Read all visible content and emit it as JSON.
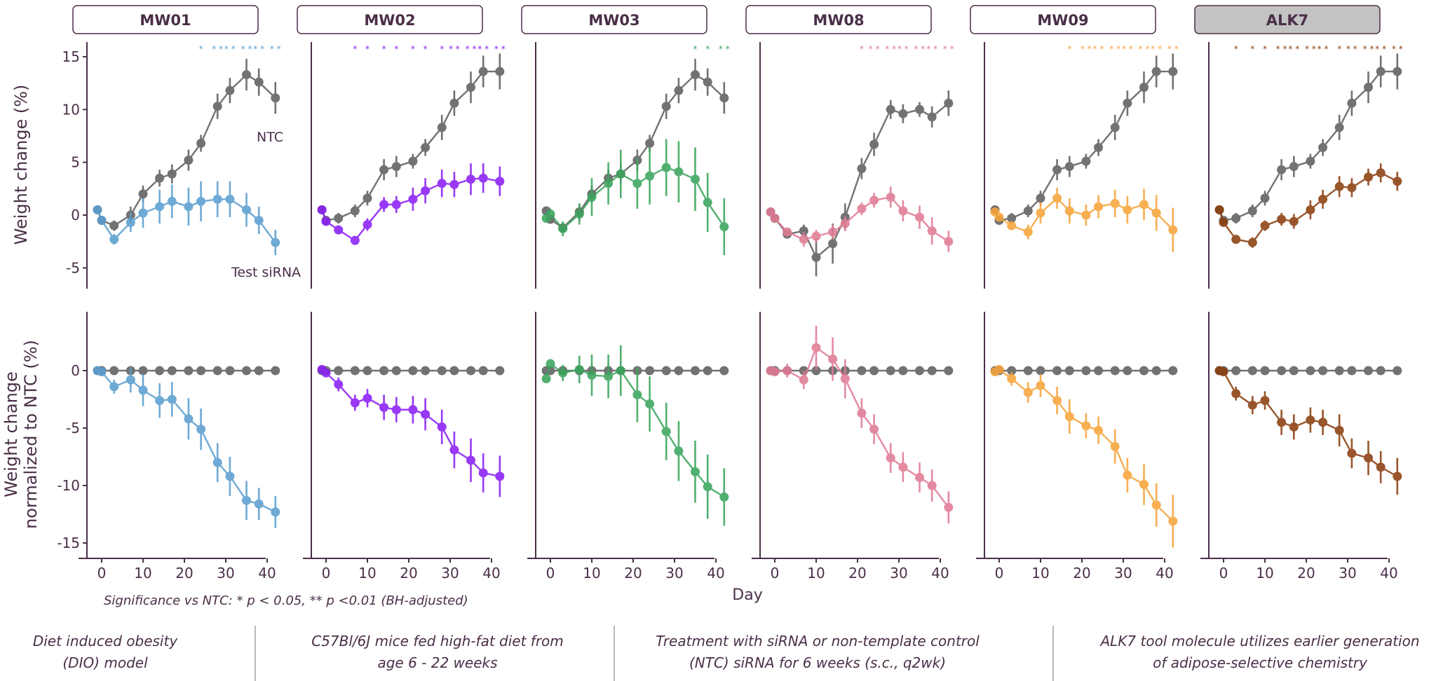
{
  "chart_data": {
    "type": "line",
    "title": "",
    "x": [
      -1,
      0,
      3,
      7,
      10,
      14,
      17,
      21,
      24,
      28,
      31,
      35,
      38,
      42
    ],
    "xlabel": "Day",
    "xticks": [
      0,
      10,
      20,
      30,
      40
    ],
    "xlim": [
      -3,
      44
    ],
    "rows": [
      {
        "id": "top",
        "ylabel": "Weight change (%)",
        "ylim": [
          -6.5,
          16.5
        ],
        "yticks": [
          15,
          10,
          5,
          0,
          -5
        ]
      },
      {
        "id": "bottom",
        "ylabel_lines": [
          "Weight change",
          "normalized to NTC (%)"
        ],
        "ylim": [
          -16.5,
          4.5
        ],
        "yticks": [
          0,
          -5,
          -10,
          -15
        ]
      }
    ],
    "annotations": {
      "ntc_label": "NTC",
      "test_label": "Test siRNA"
    },
    "significance_note": "Significance vs NTC: * p < 0.05, ** p <0.01 (BH-adjusted)",
    "ntc_color": "#5f5f5f",
    "panels": [
      {
        "name": "MW01",
        "color": "#5b9fd0",
        "highlight": false,
        "ntc": [
          0.5,
          -0.5,
          -1.0,
          0.0,
          2.0,
          3.5,
          3.9,
          5.2,
          6.8,
          10.3,
          11.8,
          13.3,
          12.6,
          11.1
        ],
        "ntc_err": [
          0.3,
          0.3,
          0.5,
          0.8,
          0.8,
          0.8,
          0.9,
          1.0,
          0.8,
          1.2,
          1.2,
          1.5,
          1.3,
          1.5
        ],
        "test": [
          0.5,
          -0.5,
          -2.3,
          -0.7,
          0.2,
          0.8,
          1.3,
          0.8,
          1.3,
          1.5,
          1.5,
          0.5,
          -0.5,
          -2.6
        ],
        "test_err": [
          0.3,
          0.4,
          0.5,
          0.9,
          1.4,
          1.6,
          1.6,
          1.8,
          1.9,
          1.7,
          1.7,
          1.6,
          1.3,
          1.2
        ],
        "norm": [
          0.0,
          -0.1,
          -1.4,
          -0.8,
          -1.7,
          -2.6,
          -2.5,
          -4.2,
          -5.1,
          -8.0,
          -9.2,
          -11.3,
          -11.6,
          -12.3
        ],
        "norm_err": [
          0.2,
          0.2,
          0.6,
          1.1,
          1.4,
          1.5,
          1.5,
          1.8,
          1.8,
          1.7,
          1.7,
          1.7,
          1.4,
          1.4
        ],
        "sig": [
          "",
          "",
          "",
          "",
          "",
          "",
          "",
          "",
          "*",
          "**",
          "**",
          "**",
          "**",
          "**"
        ]
      },
      {
        "name": "MW02",
        "color": "#8a1ef5",
        "highlight": false,
        "ntc": [
          0.5,
          -0.5,
          -0.3,
          0.4,
          1.6,
          4.3,
          4.6,
          5.1,
          6.4,
          8.3,
          10.6,
          12.1,
          13.6,
          13.6
        ],
        "ntc_err": [
          0.3,
          0.3,
          0.5,
          0.6,
          0.7,
          1.0,
          1.0,
          0.7,
          0.8,
          1.2,
          1.2,
          1.5,
          1.5,
          1.7
        ],
        "test": [
          0.5,
          -0.6,
          -1.4,
          -2.4,
          -0.9,
          1.0,
          1.0,
          1.5,
          2.3,
          3.0,
          2.9,
          3.4,
          3.5,
          3.2
        ],
        "test_err": [
          0.3,
          0.3,
          0.4,
          0.4,
          0.6,
          0.7,
          0.8,
          1.1,
          1.2,
          1.3,
          1.2,
          1.5,
          1.4,
          1.4
        ],
        "norm": [
          0.1,
          -0.2,
          -1.2,
          -2.8,
          -2.4,
          -3.2,
          -3.4,
          -3.4,
          -3.8,
          -4.9,
          -6.9,
          -7.8,
          -8.9,
          -9.2
        ],
        "norm_err": [
          0.2,
          0.2,
          0.6,
          0.7,
          0.8,
          1.1,
          1.1,
          1.2,
          1.4,
          1.5,
          1.6,
          1.9,
          1.7,
          1.8
        ],
        "sig": [
          "",
          "",
          "",
          "*",
          "*",
          "*",
          "*",
          "*",
          "*",
          "*",
          "**",
          "**",
          "**",
          "**"
        ]
      },
      {
        "name": "MW03",
        "color": "#3aa55d",
        "highlight": false,
        "ntc": [
          0.4,
          -0.4,
          -1.2,
          0.3,
          2.0,
          3.5,
          3.9,
          5.2,
          6.8,
          10.3,
          11.8,
          13.3,
          12.6,
          11.1
        ],
        "ntc_err": [
          0.3,
          0.3,
          0.4,
          0.8,
          0.8,
          0.8,
          0.9,
          1.0,
          0.8,
          1.2,
          1.2,
          1.5,
          1.3,
          1.5
        ],
        "test": [
          -0.3,
          0.1,
          -1.3,
          0.1,
          1.7,
          3.0,
          3.9,
          3.0,
          3.7,
          4.5,
          4.1,
          3.4,
          1.2,
          -1.1
        ],
        "test_err": [
          0.4,
          0.5,
          0.7,
          1.0,
          1.8,
          2.0,
          2.3,
          2.4,
          2.7,
          2.7,
          2.9,
          3.0,
          2.8,
          2.7
        ],
        "norm": [
          -0.7,
          0.6,
          -0.2,
          0.1,
          -0.4,
          -0.5,
          0.0,
          -2.1,
          -2.9,
          -5.3,
          -7.0,
          -8.8,
          -10.1,
          -11.0
        ],
        "norm_err": [
          0.3,
          0.4,
          0.7,
          1.2,
          1.8,
          1.9,
          2.2,
          2.4,
          2.4,
          2.5,
          2.6,
          2.7,
          2.8,
          2.5
        ],
        "sig": [
          "",
          "",
          "",
          "",
          "",
          "",
          "",
          "",
          "",
          "",
          "",
          "*",
          "*",
          "**"
        ]
      },
      {
        "name": "MW08",
        "color": "#e07b95",
        "highlight": false,
        "ntc": [
          0.3,
          -0.3,
          -1.8,
          -1.5,
          -4.0,
          -2.7,
          -0.2,
          4.4,
          6.7,
          10.0,
          9.6,
          10.0,
          9.3,
          10.6
        ],
        "ntc_err": [
          0.2,
          0.2,
          0.3,
          0.6,
          1.8,
          1.9,
          1.3,
          1.0,
          1.1,
          0.9,
          0.9,
          0.7,
          1.0,
          1.2
        ],
        "test": [
          0.3,
          -0.3,
          -1.6,
          -2.3,
          -2.0,
          -1.6,
          -0.8,
          0.6,
          1.4,
          1.7,
          0.4,
          -0.2,
          -1.5,
          -2.5
        ],
        "test_err": [
          0.2,
          0.2,
          0.3,
          0.7,
          0.6,
          0.7,
          0.7,
          0.6,
          0.7,
          1.0,
          1.0,
          1.1,
          1.3,
          1.0
        ],
        "norm": [
          0.0,
          -0.1,
          0.0,
          -0.8,
          2.0,
          1.0,
          -0.7,
          -3.7,
          -5.1,
          -7.6,
          -8.4,
          -9.3,
          -10.0,
          -11.9
        ],
        "norm_err": [
          0.2,
          0.2,
          0.6,
          0.8,
          1.9,
          1.9,
          1.7,
          1.3,
          1.3,
          1.3,
          1.3,
          1.3,
          1.4,
          1.4
        ],
        "sig": [
          "",
          "",
          "",
          "",
          "",
          "",
          "",
          "*",
          "**",
          "**",
          "**",
          "**",
          "**",
          "**"
        ]
      },
      {
        "name": "MW09",
        "color": "#f7a43b",
        "highlight": false,
        "ntc": [
          0.5,
          -0.5,
          -0.3,
          0.4,
          1.6,
          4.3,
          4.6,
          5.1,
          6.4,
          8.3,
          10.6,
          12.1,
          13.6,
          13.6
        ],
        "ntc_err": [
          0.3,
          0.3,
          0.5,
          0.6,
          0.7,
          1.0,
          1.0,
          0.7,
          0.8,
          1.2,
          1.2,
          1.5,
          1.5,
          1.7
        ],
        "test": [
          0.3,
          -0.2,
          -1.0,
          -1.6,
          0.2,
          1.6,
          0.4,
          0.0,
          0.8,
          1.1,
          0.5,
          1.0,
          0.2,
          -1.4
        ],
        "test_err": [
          0.2,
          0.3,
          0.4,
          0.7,
          1.0,
          1.0,
          1.2,
          1.0,
          1.1,
          1.3,
          1.3,
          1.5,
          1.7,
          2.1
        ],
        "norm": [
          -0.1,
          0.1,
          -0.7,
          -1.9,
          -1.3,
          -2.6,
          -4.0,
          -4.8,
          -5.2,
          -6.6,
          -9.1,
          -9.9,
          -11.7,
          -13.1
        ],
        "norm_err": [
          0.2,
          0.2,
          0.6,
          0.9,
          1.0,
          1.2,
          1.5,
          1.1,
          1.2,
          1.5,
          1.5,
          1.8,
          1.9,
          2.3
        ],
        "sig": [
          "",
          "",
          "",
          "",
          "",
          "",
          "*",
          "**",
          "**",
          "**",
          "**",
          "**",
          "**",
          "**"
        ]
      },
      {
        "name": "ALK7",
        "color": "#8b3e0e",
        "highlight": true,
        "ntc": [
          0.5,
          -0.5,
          -0.3,
          0.4,
          1.6,
          4.3,
          4.6,
          5.1,
          6.4,
          8.3,
          10.6,
          12.1,
          13.6,
          13.6
        ],
        "ntc_err": [
          0.3,
          0.3,
          0.5,
          0.6,
          0.7,
          1.0,
          1.0,
          0.7,
          0.8,
          1.2,
          1.2,
          1.5,
          1.5,
          1.7
        ],
        "test": [
          0.5,
          -0.7,
          -2.3,
          -2.6,
          -1.0,
          -0.4,
          -0.6,
          0.5,
          1.5,
          2.7,
          2.6,
          3.6,
          4.0,
          3.2
        ],
        "test_err": [
          0.2,
          0.3,
          0.4,
          0.5,
          0.5,
          0.6,
          0.7,
          0.9,
          0.9,
          1.0,
          0.9,
          0.8,
          0.9,
          0.9
        ],
        "norm": [
          0.0,
          -0.1,
          -2.0,
          -3.0,
          -2.6,
          -4.5,
          -4.9,
          -4.3,
          -4.5,
          -5.2,
          -7.2,
          -7.6,
          -8.4,
          -9.2
        ],
        "norm_err": [
          0.2,
          0.2,
          0.6,
          0.8,
          0.8,
          1.1,
          1.1,
          1.1,
          1.1,
          1.4,
          1.3,
          1.5,
          1.4,
          1.6
        ],
        "sig": [
          "",
          "",
          "*",
          "*",
          "*",
          "**",
          "**",
          "**",
          "**",
          "*",
          "**",
          "**",
          "**",
          "**"
        ]
      }
    ]
  },
  "footer": {
    "items": [
      {
        "line1": "Diet induced obesity",
        "line2": "(DIO) model"
      },
      {
        "line1": "C57Bl/6J mice fed high-fat diet from",
        "line2": "age 6 - 22 weeks"
      },
      {
        "line1": "Treatment with siRNA or non-template control",
        "line2": "(NTC) siRNA for 6 weeks (s.c., q2wk)"
      },
      {
        "line1": "ALK7 tool molecule utilizes earlier generation",
        "line2": "of adipose-selective chemistry"
      }
    ]
  }
}
